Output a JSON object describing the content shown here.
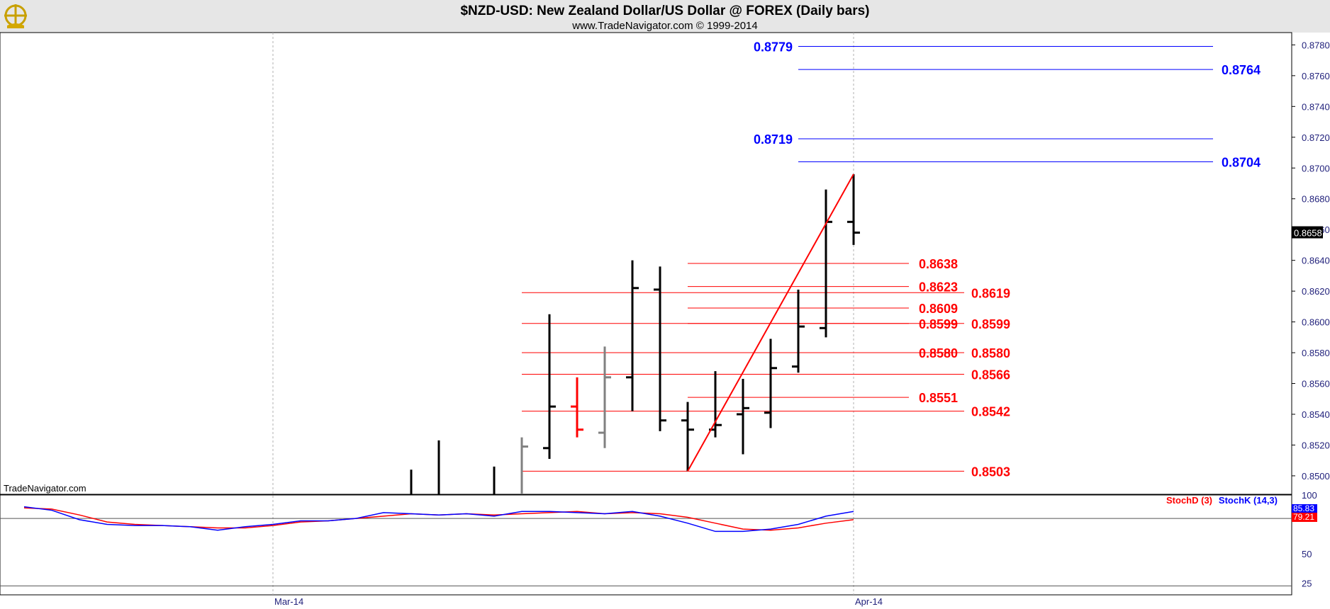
{
  "header": {
    "title": "$NZD-USD:  New Zealand Dollar/US Dollar @ FOREX  (Daily bars)",
    "subtitle": "www.TradeNavigator.com © 1999-2014",
    "watermark": "TradeNavigator.com"
  },
  "colors": {
    "background": "#ffffff",
    "header_bg": "#e6e6e6",
    "bar_up": "#000000",
    "bar_gray": "#808080",
    "bar_red": "#ff0000",
    "fib_red": "#ff0000",
    "fib_blue": "#0000ff",
    "stoch_d": "#ff0000",
    "stoch_k": "#0000ff",
    "axis_text": "#1f1f7a"
  },
  "chart_data": {
    "type": "ohlc",
    "price_axis": {
      "ticks": [
        "0.8780",
        "0.8760",
        "0.8740",
        "0.8720",
        "0.8700",
        "0.8680",
        "0.8660",
        "0.8640",
        "0.8620",
        "0.8600",
        "0.8580",
        "0.8560",
        "0.8540",
        "0.8520",
        "0.8500"
      ],
      "range": [
        0.8488,
        0.8788
      ],
      "last_price": "0.8658"
    },
    "x_axis": {
      "labels": [
        {
          "text": "Mar-14",
          "day": 9
        },
        {
          "text": "Apr-14",
          "day": 30
        }
      ]
    },
    "bars": [
      {
        "day": 14,
        "high": 0.8504,
        "low": 0.8488,
        "open": null,
        "close": null,
        "color": "black"
      },
      {
        "day": 15,
        "high": 0.8523,
        "low": 0.8488,
        "open": null,
        "close": null,
        "color": "black"
      },
      {
        "day": 17,
        "high": 0.8506,
        "low": 0.8488,
        "open": null,
        "close": null,
        "color": "black"
      },
      {
        "day": 18,
        "high": 0.8525,
        "low": 0.8488,
        "open": null,
        "close": 0.8519,
        "color": "gray"
      },
      {
        "day": 19,
        "high": 0.8605,
        "low": 0.8511,
        "open": 0.8518,
        "close": 0.8545,
        "color": "black"
      },
      {
        "day": 20,
        "high": 0.8564,
        "low": 0.8525,
        "open": 0.8545,
        "close": 0.853,
        "color": "red"
      },
      {
        "day": 21,
        "high": 0.8584,
        "low": 0.8518,
        "open": 0.8528,
        "close": 0.8564,
        "color": "gray"
      },
      {
        "day": 22,
        "high": 0.864,
        "low": 0.8542,
        "open": 0.8564,
        "close": 0.8622,
        "color": "black"
      },
      {
        "day": 23,
        "high": 0.8636,
        "low": 0.8529,
        "open": 0.8621,
        "close": 0.8536,
        "color": "black"
      },
      {
        "day": 24,
        "high": 0.8548,
        "low": 0.8503,
        "open": 0.8536,
        "close": 0.853,
        "color": "black"
      },
      {
        "day": 25,
        "high": 0.8568,
        "low": 0.8525,
        "open": 0.853,
        "close": 0.8533,
        "color": "black"
      },
      {
        "day": 26,
        "high": 0.8563,
        "low": 0.8514,
        "open": 0.854,
        "close": 0.8544,
        "color": "black"
      },
      {
        "day": 27,
        "high": 0.8589,
        "low": 0.8531,
        "open": 0.8541,
        "close": 0.857,
        "color": "black"
      },
      {
        "day": 28,
        "high": 0.8621,
        "low": 0.8567,
        "open": 0.8571,
        "close": 0.8597,
        "color": "black"
      },
      {
        "day": 29,
        "high": 0.8686,
        "low": 0.859,
        "open": 0.8596,
        "close": 0.8665,
        "color": "black"
      },
      {
        "day": 30,
        "high": 0.8696,
        "low": 0.865,
        "open": 0.8665,
        "close": 0.8658,
        "color": "black"
      }
    ],
    "swing_line": {
      "from": {
        "day": 24,
        "price": 0.8503
      },
      "to": {
        "day": 30,
        "price": 0.8696
      }
    },
    "fib_levels": [
      {
        "label": "0.8779",
        "price": 0.8779,
        "color": "blue",
        "from_day": 28,
        "to_day": 43,
        "label_side": "left"
      },
      {
        "label": "0.8764",
        "price": 0.8764,
        "color": "blue",
        "from_day": 28,
        "to_day": 43,
        "label_side": "right"
      },
      {
        "label": "0.8719",
        "price": 0.8719,
        "color": "blue",
        "from_day": 28,
        "to_day": 43,
        "label_side": "left"
      },
      {
        "label": "0.8704",
        "price": 0.8704,
        "color": "blue",
        "from_day": 28,
        "to_day": 43,
        "label_side": "right"
      },
      {
        "label": "0.8638",
        "price": 0.8638,
        "color": "red",
        "from_day": 24,
        "to_day": 32,
        "label_side": "right-near"
      },
      {
        "label": "0.8623",
        "price": 0.8623,
        "color": "red",
        "from_day": 24,
        "to_day": 32,
        "label_side": "right-near"
      },
      {
        "label": "0.8619",
        "price": 0.8619,
        "color": "red",
        "from_day": 18,
        "to_day": 34,
        "label_side": "right-far"
      },
      {
        "label": "0.8609",
        "price": 0.8609,
        "color": "red",
        "from_day": 24,
        "to_day": 32,
        "label_side": "right-near"
      },
      {
        "label": "0.8599",
        "price": 0.8599,
        "color": "red",
        "from_day": 24,
        "to_day": 32,
        "label_side": "right-near"
      },
      {
        "label": "0.8599",
        "price": 0.8599,
        "color": "red",
        "from_day": 18,
        "to_day": 34,
        "label_side": "right-far"
      },
      {
        "label": "0.8580",
        "price": 0.858,
        "color": "red",
        "from_day": 24,
        "to_day": 32,
        "label_side": "right-near"
      },
      {
        "label": "0.8580",
        "price": 0.858,
        "color": "red",
        "from_day": 18,
        "to_day": 34,
        "label_side": "right-far"
      },
      {
        "label": "0.8566",
        "price": 0.8566,
        "color": "red",
        "from_day": 18,
        "to_day": 34,
        "label_side": "right-far"
      },
      {
        "label": "0.8551",
        "price": 0.8551,
        "color": "red",
        "from_day": 24,
        "to_day": 32,
        "label_side": "right-near"
      },
      {
        "label": "0.8542",
        "price": 0.8542,
        "color": "red",
        "from_day": 18,
        "to_day": 34,
        "label_side": "right-far"
      },
      {
        "label": "0.8503",
        "price": 0.8503,
        "color": "red",
        "from_day": 18,
        "to_day": 34,
        "label_side": "right-far"
      }
    ],
    "stochastic": {
      "axis_ticks": [
        "100",
        "50",
        "25"
      ],
      "ticks_values": [
        100,
        50,
        25
      ],
      "range": [
        15,
        100
      ],
      "legend": [
        {
          "name": "StochD (3)",
          "color": "red"
        },
        {
          "name": "StochK (14,3)",
          "color": "blue"
        }
      ],
      "last_k": "85.83",
      "last_d": "79.21",
      "hline": 80,
      "k_values": [
        {
          "day": 0,
          "v": 90
        },
        {
          "day": 1,
          "v": 87
        },
        {
          "day": 2,
          "v": 79
        },
        {
          "day": 3,
          "v": 75
        },
        {
          "day": 4,
          "v": 74
        },
        {
          "day": 5,
          "v": 74
        },
        {
          "day": 6,
          "v": 73
        },
        {
          "day": 7,
          "v": 70
        },
        {
          "day": 8,
          "v": 73
        },
        {
          "day": 9,
          "v": 75
        },
        {
          "day": 10,
          "v": 78
        },
        {
          "day": 11,
          "v": 78
        },
        {
          "day": 12,
          "v": 80
        },
        {
          "day": 13,
          "v": 85
        },
        {
          "day": 14,
          "v": 84
        },
        {
          "day": 15,
          "v": 83
        },
        {
          "day": 16,
          "v": 84
        },
        {
          "day": 17,
          "v": 82
        },
        {
          "day": 18,
          "v": 86
        },
        {
          "day": 19,
          "v": 86
        },
        {
          "day": 20,
          "v": 85
        },
        {
          "day": 21,
          "v": 84
        },
        {
          "day": 22,
          "v": 86
        },
        {
          "day": 23,
          "v": 82
        },
        {
          "day": 24,
          "v": 76
        },
        {
          "day": 25,
          "v": 69
        },
        {
          "day": 26,
          "v": 69
        },
        {
          "day": 27,
          "v": 71
        },
        {
          "day": 28,
          "v": 75
        },
        {
          "day": 29,
          "v": 82
        },
        {
          "day": 30,
          "v": 86
        }
      ],
      "d_values": [
        {
          "day": 0,
          "v": 89
        },
        {
          "day": 1,
          "v": 88
        },
        {
          "day": 2,
          "v": 83
        },
        {
          "day": 3,
          "v": 77
        },
        {
          "day": 4,
          "v": 75
        },
        {
          "day": 5,
          "v": 74
        },
        {
          "day": 6,
          "v": 73
        },
        {
          "day": 7,
          "v": 72
        },
        {
          "day": 8,
          "v": 72
        },
        {
          "day": 9,
          "v": 74
        },
        {
          "day": 10,
          "v": 77
        },
        {
          "day": 11,
          "v": 78
        },
        {
          "day": 12,
          "v": 80
        },
        {
          "day": 13,
          "v": 82
        },
        {
          "day": 14,
          "v": 84
        },
        {
          "day": 15,
          "v": 83
        },
        {
          "day": 16,
          "v": 84
        },
        {
          "day": 17,
          "v": 83
        },
        {
          "day": 18,
          "v": 84
        },
        {
          "day": 19,
          "v": 85
        },
        {
          "day": 20,
          "v": 86
        },
        {
          "day": 21,
          "v": 84
        },
        {
          "day": 22,
          "v": 85
        },
        {
          "day": 23,
          "v": 84
        },
        {
          "day": 24,
          "v": 81
        },
        {
          "day": 25,
          "v": 76
        },
        {
          "day": 26,
          "v": 71
        },
        {
          "day": 27,
          "v": 70
        },
        {
          "day": 28,
          "v": 72
        },
        {
          "day": 29,
          "v": 76
        },
        {
          "day": 30,
          "v": 79
        }
      ]
    }
  }
}
